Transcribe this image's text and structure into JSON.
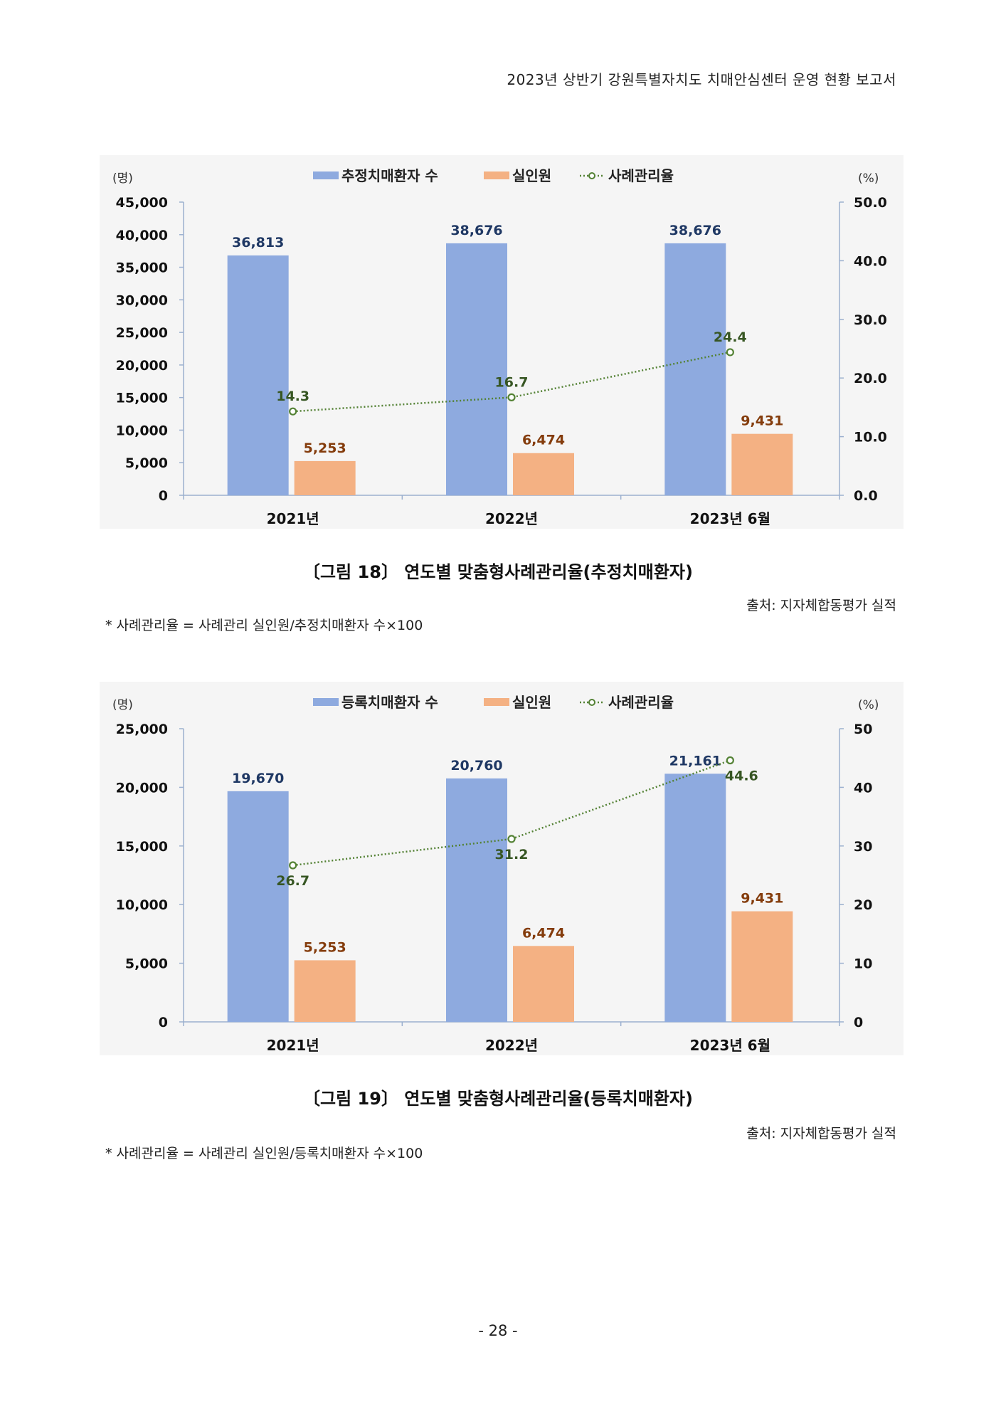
{
  "header": {
    "title": "2023년 상반기 강원특별자치도 치매안심센터 운영 현황 보고서"
  },
  "figures": [
    {
      "caption": "〔그림 18〕 연도별 맞춤형사례관리율(추정치매환자)",
      "source": "출처: 지자체합동평가 실적",
      "note": "* 사례관리율 = 사례관리 실인원/추정치매환자 수×100"
    },
    {
      "caption": "〔그림 19〕 연도별 맞춤형사례관리율(등록치매환자)",
      "source": "출처: 지자체합동평가 실적",
      "note": "* 사례관리율 = 사례관리 실인원/등록치매환자 수×100"
    }
  ],
  "page_number": "- 28 -",
  "chart_data": [
    {
      "type": "bar",
      "categories": [
        "2021년",
        "2022년",
        "2023년 6월"
      ],
      "series": [
        {
          "name": "추정치매환자 수",
          "type": "bar",
          "axis": "left",
          "values": [
            36813,
            38676,
            38676
          ],
          "labels": [
            "36,813",
            "38,676",
            "38,676"
          ],
          "color": "#8eaadf",
          "label_color": "#1f3864"
        },
        {
          "name": "실인원",
          "type": "bar",
          "axis": "left",
          "values": [
            5253,
            6474,
            9431
          ],
          "labels": [
            "5,253",
            "6,474",
            "9,431"
          ],
          "color": "#f4b183",
          "label_color": "#843c0c"
        },
        {
          "name": "사례관리율",
          "type": "line",
          "axis": "right",
          "values": [
            14.3,
            16.7,
            24.4
          ],
          "labels": [
            "14.3",
            "16.7",
            "24.4"
          ],
          "color": "#548235",
          "label_color": "#375623",
          "line_style": "dotted"
        }
      ],
      "left_axis": {
        "unit": "(명)",
        "range": [
          0,
          45000
        ],
        "ticks": [
          "0",
          "5,000",
          "10,000",
          "15,000",
          "20,000",
          "25,000",
          "30,000",
          "35,000",
          "40,000",
          "45,000"
        ]
      },
      "right_axis": {
        "unit": "(%)",
        "range": [
          0,
          50
        ],
        "ticks": [
          "0.0",
          "10.0",
          "20.0",
          "30.0",
          "40.0",
          "50.0"
        ]
      },
      "legend": "top-center",
      "grid": false
    },
    {
      "type": "bar",
      "categories": [
        "2021년",
        "2022년",
        "2023년 6월"
      ],
      "series": [
        {
          "name": "등록치매환자 수",
          "type": "bar",
          "axis": "left",
          "values": [
            19670,
            20760,
            21161
          ],
          "labels": [
            "19,670",
            "20,760",
            "21,161"
          ],
          "color": "#8eaadf",
          "label_color": "#1f3864"
        },
        {
          "name": "실인원",
          "type": "bar",
          "axis": "left",
          "values": [
            5253,
            6474,
            9431
          ],
          "labels": [
            "5,253",
            "6,474",
            "9,431"
          ],
          "color": "#f4b183",
          "label_color": "#843c0c"
        },
        {
          "name": "사례관리율",
          "type": "line",
          "axis": "right",
          "values": [
            26.7,
            31.2,
            44.6
          ],
          "labels": [
            "26.7",
            "31.2",
            "44.6"
          ],
          "color": "#548235",
          "label_color": "#375623",
          "line_style": "dotted"
        }
      ],
      "left_axis": {
        "unit": "(명)",
        "range": [
          0,
          25000
        ],
        "ticks": [
          "0",
          "5,000",
          "10,000",
          "15,000",
          "20,000",
          "25,000"
        ]
      },
      "right_axis": {
        "unit": "(%)",
        "range": [
          0,
          50
        ],
        "ticks": [
          "0",
          "10",
          "20",
          "30",
          "40",
          "50"
        ]
      },
      "legend": "top-center",
      "grid": false
    }
  ]
}
